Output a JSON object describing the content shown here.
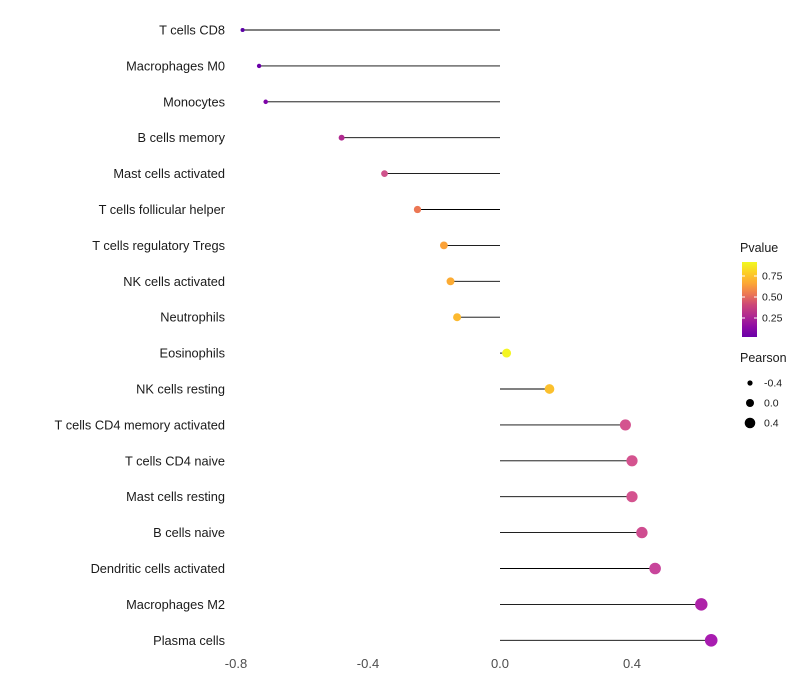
{
  "chart_data": {
    "type": "scatter",
    "variant": "lollipop",
    "title": "",
    "xlabel": "",
    "ylabel": "",
    "xlim": [
      -0.9,
      0.72
    ],
    "x_ticks": [
      -0.8,
      -0.4,
      0.0,
      0.4
    ],
    "x_tick_labels": [
      "-0.8",
      "-0.4",
      "0.0",
      "0.4"
    ],
    "grid": "off",
    "legend_position": "right",
    "points": [
      {
        "label": "T cells CD8",
        "pearson": -0.78,
        "color": "#5c01a6"
      },
      {
        "label": "Macrophages M0",
        "pearson": -0.73,
        "color": "#6a00a8"
      },
      {
        "label": "Monocytes",
        "pearson": -0.71,
        "color": "#7e03a8"
      },
      {
        "label": "B cells memory",
        "pearson": -0.48,
        "color": "#b12a90"
      },
      {
        "label": "Mast cells activated",
        "pearson": -0.35,
        "color": "#d0538c"
      },
      {
        "label": "T cells follicular helper",
        "pearson": -0.25,
        "color": "#ec7754"
      },
      {
        "label": "T cells regulatory Tregs",
        "pearson": -0.17,
        "color": "#fba238"
      },
      {
        "label": "NK cells activated",
        "pearson": -0.15,
        "color": "#fcab33"
      },
      {
        "label": "Neutrophils",
        "pearson": -0.13,
        "color": "#fcb92f"
      },
      {
        "label": "Eosinophils",
        "pearson": 0.02,
        "color": "#f4f522"
      },
      {
        "label": "NK cells resting",
        "pearson": 0.15,
        "color": "#fbc02d"
      },
      {
        "label": "T cells CD4 memory activated",
        "pearson": 0.38,
        "color": "#d4538f"
      },
      {
        "label": "T cells CD4 naive",
        "pearson": 0.4,
        "color": "#d4538f"
      },
      {
        "label": "Mast cells resting",
        "pearson": 0.4,
        "color": "#d4538f"
      },
      {
        "label": "B cells naive",
        "pearson": 0.43,
        "color": "#cf4d90"
      },
      {
        "label": "Dendritic cells activated",
        "pearson": 0.47,
        "color": "#c8459b"
      },
      {
        "label": "Macrophages M2",
        "pearson": 0.61,
        "color": "#ae23a8"
      },
      {
        "label": "Plasma cells",
        "pearson": 0.64,
        "color": "#a81cb0"
      }
    ],
    "legend": {
      "pvalue": {
        "title": "Pvalue",
        "ticks": [
          "0.75",
          "0.50",
          "0.25"
        ],
        "gradient": [
          "#f0f921",
          "#fcce25",
          "#fca636",
          "#ec7754",
          "#cc4778",
          "#b12a90",
          "#8f0da4",
          "#6a00a8"
        ]
      },
      "pearson": {
        "title": "Pearson",
        "items": [
          {
            "label": "-0.4",
            "r": 2.6
          },
          {
            "label": "0.0",
            "r": 4.0
          },
          {
            "label": "0.4",
            "r": 5.3
          }
        ]
      }
    }
  }
}
